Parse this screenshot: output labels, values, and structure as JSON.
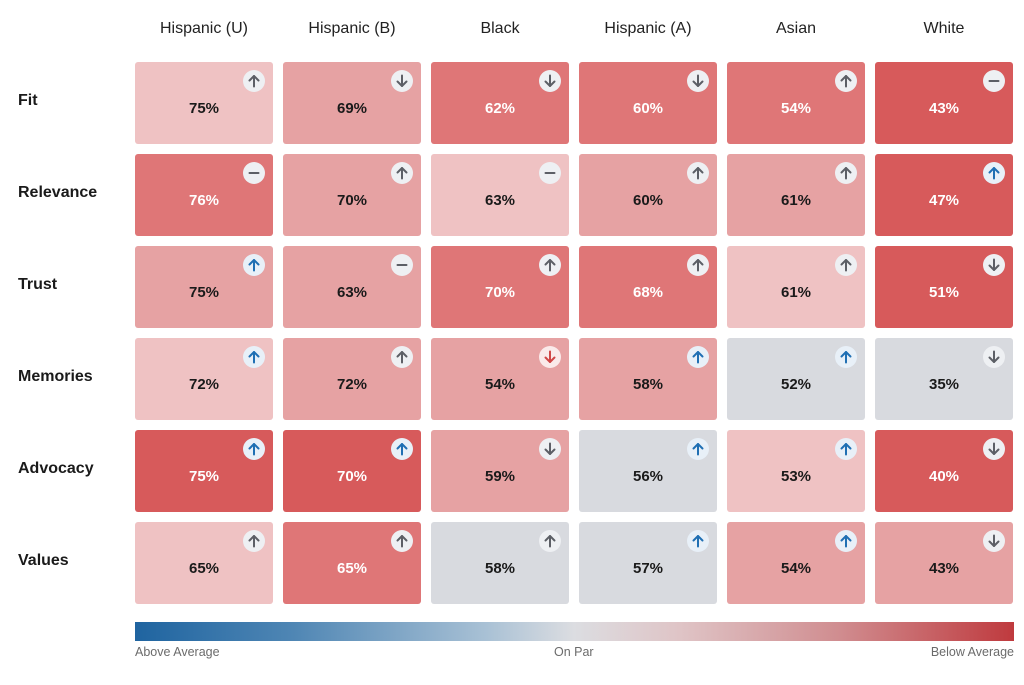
{
  "chart_data": {
    "type": "heatmap",
    "columns": [
      "Hispanic (U)",
      "Hispanic (B)",
      "Black",
      "Hispanic (A)",
      "Asian",
      "White"
    ],
    "rows": [
      "Fit",
      "Relevance",
      "Trust",
      "Memories",
      "Advocacy",
      "Values"
    ],
    "values": [
      [
        "75%",
        "69%",
        "62%",
        "60%",
        "54%",
        "43%"
      ],
      [
        "76%",
        "70%",
        "63%",
        "60%",
        "61%",
        "47%"
      ],
      [
        "75%",
        "63%",
        "70%",
        "68%",
        "61%",
        "51%"
      ],
      [
        "72%",
        "72%",
        "54%",
        "58%",
        "52%",
        "35%"
      ],
      [
        "75%",
        "70%",
        "59%",
        "56%",
        "53%",
        "40%"
      ],
      [
        "65%",
        "65%",
        "58%",
        "57%",
        "54%",
        "43%"
      ]
    ],
    "tiers": [
      [
        1,
        2,
        3,
        3,
        3,
        4
      ],
      [
        3,
        2,
        1,
        2,
        2,
        4
      ],
      [
        2,
        2,
        3,
        3,
        1,
        4
      ],
      [
        1,
        2,
        2,
        2,
        0,
        0
      ],
      [
        4,
        4,
        2,
        0,
        1,
        4
      ],
      [
        1,
        3,
        0,
        0,
        2,
        2
      ]
    ],
    "trend_icons": [
      [
        "up-arrow-icon",
        "down-arrow-icon",
        "down-arrow-icon",
        "down-arrow-icon",
        "up-arrow-icon",
        "dash-icon"
      ],
      [
        "dash-icon",
        "up-arrow-icon",
        "dash-icon",
        "up-arrow-icon",
        "up-arrow-icon",
        "up-arrow-icon"
      ],
      [
        "up-arrow-icon",
        "dash-icon",
        "up-arrow-icon",
        "up-arrow-icon",
        "up-arrow-icon",
        "down-arrow-icon"
      ],
      [
        "up-arrow-icon",
        "up-arrow-icon",
        "down-arrow-icon",
        "up-arrow-icon",
        "up-arrow-icon",
        "down-arrow-icon"
      ],
      [
        "up-arrow-icon",
        "up-arrow-icon",
        "down-arrow-icon",
        "up-arrow-icon",
        "up-arrow-icon",
        "down-arrow-icon"
      ],
      [
        "up-arrow-icon",
        "up-arrow-icon",
        "up-arrow-icon",
        "up-arrow-icon",
        "up-arrow-icon",
        "down-arrow-icon"
      ]
    ],
    "trend_colors": [
      [
        "gray",
        "gray",
        "gray",
        "gray",
        "gray",
        "gray"
      ],
      [
        "gray",
        "gray",
        "gray",
        "gray",
        "gray",
        "blue"
      ],
      [
        "blue",
        "gray",
        "gray",
        "gray",
        "gray",
        "gray"
      ],
      [
        "blue",
        "gray",
        "red",
        "blue",
        "blue",
        "gray"
      ],
      [
        "blue",
        "blue",
        "gray",
        "blue",
        "blue",
        "gray"
      ],
      [
        "gray",
        "gray",
        "gray",
        "blue",
        "blue",
        "gray"
      ]
    ],
    "tier_colors": [
      "#d8dadf",
      "#efc2c3",
      "#e6a2a3",
      "#df7677",
      "#d75a5b"
    ],
    "legend": {
      "left": "Above Average",
      "center": "On Par",
      "right": "Below Average",
      "gradient": [
        "#1f64a0",
        "#dcdde1",
        "#bf3a3e"
      ]
    }
  }
}
